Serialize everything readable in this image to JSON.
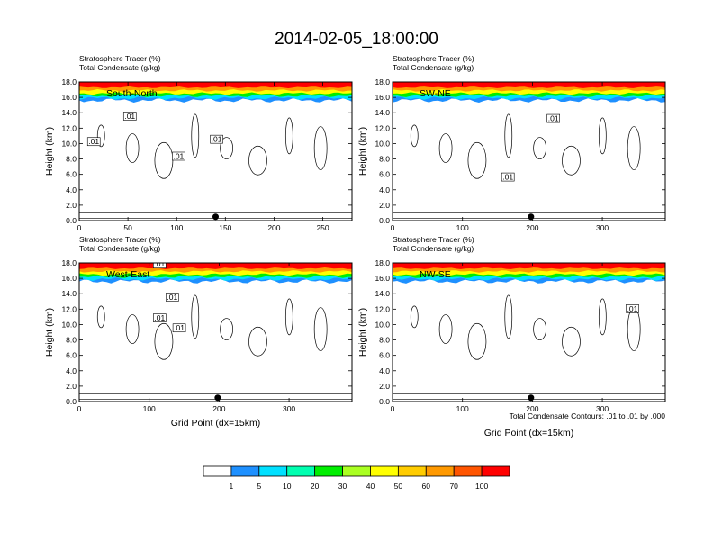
{
  "title": "2014-02-05_18:00:00",
  "chart_data": {
    "type": "heatmap",
    "panels": [
      {
        "name": "South-North",
        "line1": "Stratosphere Tracer   (%)",
        "line2": "Total Condensate   (g/kg)",
        "ylabel": "Height (km)",
        "xlabel": "",
        "xlim": [
          0,
          280
        ],
        "xticks": [
          0,
          50,
          100,
          150,
          200,
          250
        ],
        "ylim": [
          0,
          18
        ],
        "yticks": [
          "0.0",
          "2.0",
          "4.0",
          "6.0",
          "8.0",
          "10.0",
          "12.0",
          "14.0",
          "16.0",
          "18.0"
        ],
        "contour_labels": [
          [
            15,
            10.2,
            ".01"
          ],
          [
            52,
            13.5,
            ".01"
          ],
          [
            102,
            8.3,
            ".01"
          ],
          [
            141,
            10.5,
            ".01"
          ]
        ],
        "marker_x": 140
      },
      {
        "name": "SW-NE",
        "line1": "Stratosphere Tracer   (%)",
        "line2": "Total Condensate   (g/kg)",
        "ylabel": "Height (km)",
        "xlabel": "",
        "xlim": [
          0,
          390
        ],
        "xticks": [
          0,
          100,
          200,
          300
        ],
        "ylim": [
          0,
          18
        ],
        "yticks": [
          "0.0",
          "2.0",
          "4.0",
          "6.0",
          "8.0",
          "10.0",
          "12.0",
          "14.0",
          "16.0",
          "18.0"
        ],
        "contour_labels": [
          [
            165,
            5.6,
            ".01"
          ],
          [
            230,
            13.2,
            ".01"
          ]
        ],
        "marker_x": 198
      },
      {
        "name": "West-East",
        "line1": "Stratosphere Tracer   (%)",
        "line2": "Total Condensate   (g/kg)",
        "ylabel": "Height (km)",
        "xlabel": "Grid Point (dx=15km)",
        "xlim": [
          0,
          390
        ],
        "xticks": [
          0,
          100,
          200,
          300
        ],
        "ylim": [
          0,
          18
        ],
        "yticks": [
          "0.0",
          "2.0",
          "4.0",
          "6.0",
          "8.0",
          "10.0",
          "12.0",
          "14.0",
          "16.0",
          "18.0"
        ],
        "contour_labels": [
          [
            133,
            13.5,
            ".01"
          ],
          [
            115,
            17.8,
            ".01"
          ],
          [
            115,
            10.8,
            ".01"
          ],
          [
            143,
            9.5,
            ".01"
          ]
        ],
        "marker_x": 198
      },
      {
        "name": "NW-SE",
        "line1": "Stratosphere Tracer   (%)",
        "line2": "Total Condensate   (g/kg)",
        "ylabel": "Height (km)",
        "xlabel": "Grid Point (dx=15km)",
        "xlim": [
          0,
          390
        ],
        "xticks": [
          0,
          100,
          200,
          300
        ],
        "ylim": [
          0,
          18
        ],
        "yticks": [
          "0.0",
          "2.0",
          "4.0",
          "6.0",
          "8.0",
          "10.0",
          "12.0",
          "14.0",
          "16.0",
          "18.0"
        ],
        "contour_labels": [
          [
            343,
            12.0,
            ".01"
          ]
        ],
        "marker_x": 198,
        "footnote": "Total Condensate Contours: .01 to .01 by .000"
      }
    ],
    "colorbar": {
      "labels": [
        "1",
        "5",
        "10",
        "20",
        "30",
        "40",
        "50",
        "60",
        "70",
        "100"
      ],
      "colors": [
        "#ffffff",
        "#1e90ff",
        "#00e0ff",
        "#00ffb0",
        "#00ee00",
        "#aaff22",
        "#ffff00",
        "#ffcc00",
        "#ff9900",
        "#ff5500",
        "#ff0000"
      ]
    }
  }
}
